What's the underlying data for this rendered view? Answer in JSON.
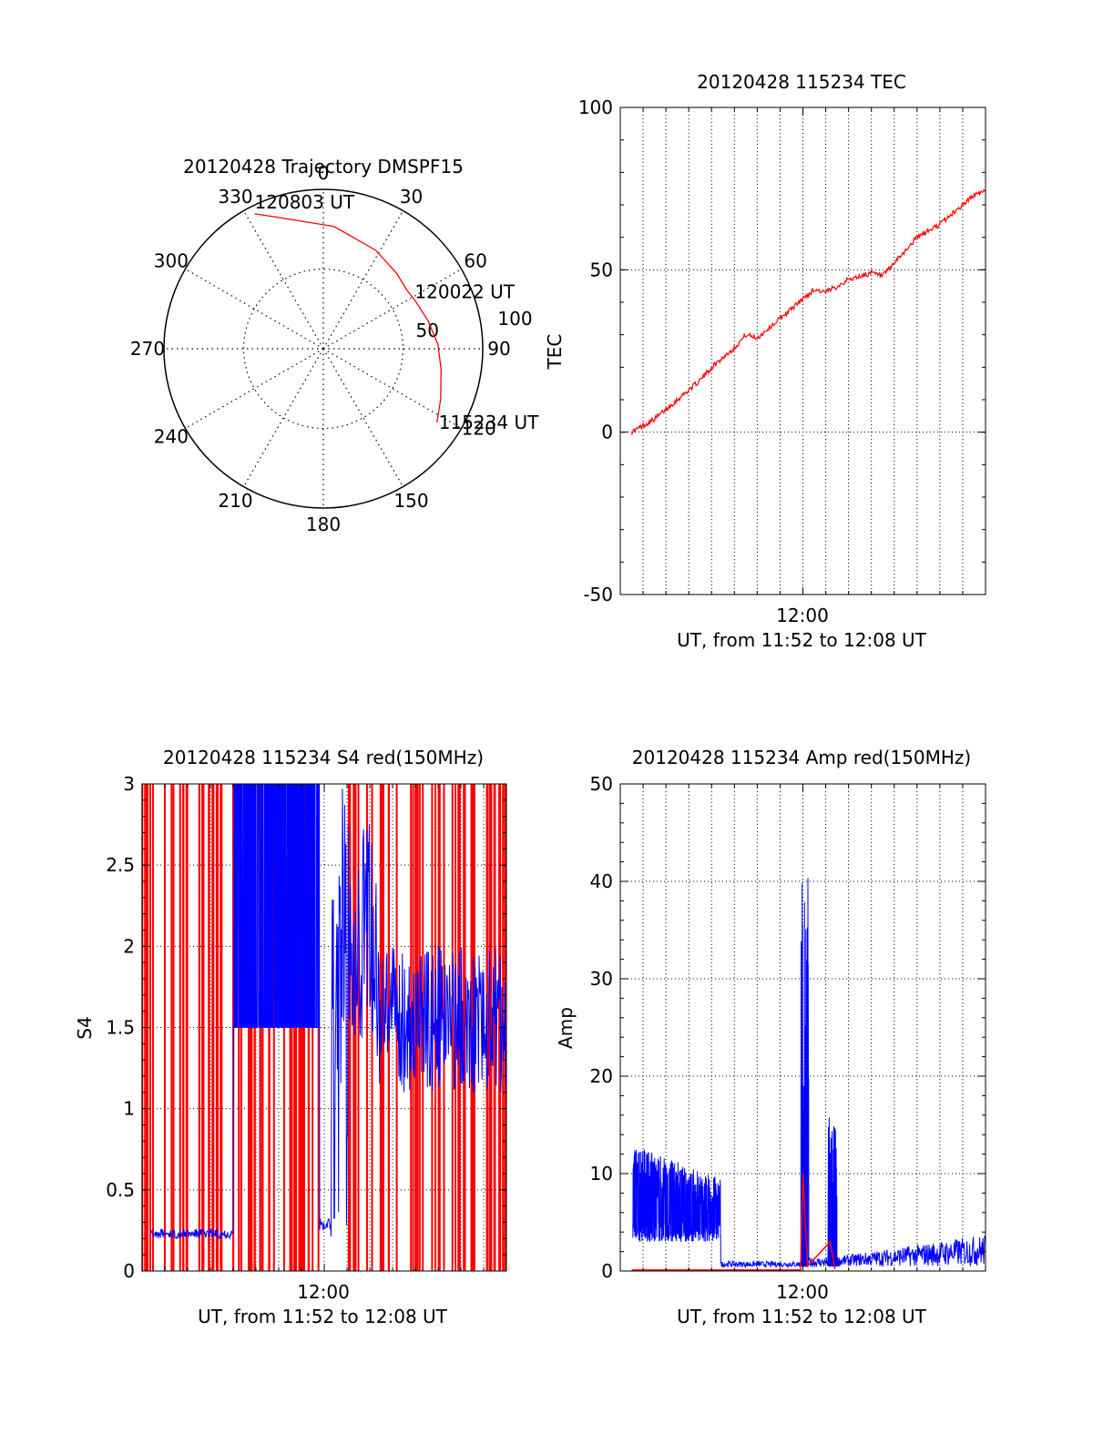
{
  "colors": {
    "red": "#ff0000",
    "blue": "#0000ff",
    "axis": "#000000",
    "grid": "#000000"
  },
  "chart_data": [
    {
      "type": "polar",
      "title": "20120428 Trajectory DMSPF15",
      "angle_labels": [
        "0",
        "30",
        "60",
        "90",
        "150",
        "180",
        "210",
        "240",
        "270",
        "300",
        "330"
      ],
      "radial_labels": [
        "50",
        "100"
      ],
      "rlim": [
        0,
        100
      ],
      "radial_grid": [
        50,
        100
      ],
      "angle_grid_step": 30,
      "grid": true,
      "series": [
        {
          "color": "#ff0000",
          "theta_deg": [
            336,
            348,
            5,
            20,
            35,
            55,
            88,
            120
          ],
          "r": [
            83,
            68,
            53,
            40,
            31,
            25,
            22,
            21
          ]
        }
      ],
      "trajectory": {
        "theta_deg": [
          123,
          113,
          100,
          88,
          75,
          62,
          55,
          44,
          28,
          5,
          340,
          333
        ],
        "r": [
          85,
          80,
          75,
          72,
          68,
          65,
          64,
          66,
          70,
          77,
          88,
          95
        ]
      },
      "annotations": [
        {
          "text": "120803 UT",
          "theta_deg": 333,
          "r": 95
        },
        {
          "text": "120022 UT",
          "theta_deg": 62,
          "r": 65
        },
        {
          "text": "115234 UT",
          "theta_deg": 123,
          "r": 85
        },
        {
          "text": "120",
          "theta_deg": 120,
          "r": 100
        }
      ]
    },
    {
      "type": "line",
      "title": "20120428 115234 TEC",
      "xlabel": "UT, from 11:52 to 12:08 UT",
      "ylabel": "TEC",
      "x_tick_labels": [
        "12:00"
      ],
      "y_tick_labels": [
        "-50",
        "0",
        "50",
        "100"
      ],
      "xlim_min": [
        712,
        728
      ],
      "ylim": [
        -50,
        100
      ],
      "grid": true,
      "series": [
        {
          "color": "#ff0000",
          "x": [
            712.5,
            713,
            713.5,
            714,
            714.5,
            715,
            715.5,
            716,
            716.5,
            717,
            717.5,
            718,
            718.5,
            719,
            719.5,
            720,
            720.5,
            721,
            721.5,
            722,
            722.5,
            723,
            723.5,
            724,
            724.5,
            725,
            725.5,
            726,
            726.5,
            727,
            727.5,
            728
          ],
          "y": [
            0,
            2,
            4,
            7,
            10,
            13,
            16,
            20,
            23,
            26,
            30,
            29,
            32,
            35,
            38,
            41,
            44,
            43,
            45,
            47,
            48,
            49,
            48,
            52,
            56,
            60,
            62,
            64,
            67,
            70,
            73,
            74
          ]
        }
      ]
    },
    {
      "type": "line",
      "title": "20120428 115234 S4 red(150MHz)",
      "xlabel": "UT, from 11:52 to 12:08 UT",
      "ylabel": "S4",
      "x_tick_labels": [
        "12:00"
      ],
      "y_tick_labels": [
        "0",
        "0.5",
        "1",
        "1.5",
        "2",
        "2.5",
        "3"
      ],
      "xlim_min": [
        712,
        728
      ],
      "ylim": [
        0,
        3
      ],
      "grid": true,
      "series": [
        {
          "name": "",
          "color": "#0000ff",
          "x": [
            712,
            713,
            714,
            715,
            716,
            717,
            718,
            719,
            720,
            721,
            722,
            723,
            724,
            725,
            726,
            727,
            728
          ],
          "y": [
            0.22,
            0.22,
            0.23,
            0.22,
            1.5,
            1.5,
            1.5,
            1.5,
            0.25,
            0.3,
            2.0,
            1.6,
            1.4,
            1.5,
            1.6,
            1.4,
            1.3
          ]
        },
        {
          "name": "",
          "color": "#ff0000",
          "x": [
            712,
            728
          ],
          "y": [
            3,
            3
          ]
        }
      ]
    },
    {
      "type": "line",
      "title": "20120428 115234 Amp red(150MHz)",
      "xlabel": "UT, from 11:52 to 12:08 UT",
      "ylabel": "Amp",
      "x_tick_labels": [
        "12:00"
      ],
      "y_tick_labels": [
        "0",
        "10",
        "20",
        "30",
        "40",
        "50"
      ],
      "xlim_min": [
        712,
        728
      ],
      "ylim": [
        0,
        50
      ],
      "grid": true,
      "series": [
        {
          "name": "",
          "color": "#0000ff",
          "x": [
            712.5,
            713,
            714,
            715,
            716,
            716.5,
            717,
            718,
            719,
            719.5,
            720,
            720.5,
            721,
            721.5,
            722,
            723,
            724,
            725,
            726,
            727,
            728
          ],
          "y": [
            12,
            10,
            9,
            8,
            7,
            0.5,
            0.6,
            0.6,
            0.7,
            0.8,
            40,
            0.8,
            16,
            0.5,
            1,
            1.2,
            1.4,
            1.6,
            1.8,
            2,
            2.2
          ]
        },
        {
          "name": "",
          "color": "#ff0000",
          "x": [
            712.5,
            716.5,
            719.9,
            720.0,
            720.2,
            721.2,
            721.4
          ],
          "y": [
            0.1,
            0.1,
            0.1,
            10,
            0.5,
            3,
            0.2
          ]
        }
      ]
    }
  ]
}
